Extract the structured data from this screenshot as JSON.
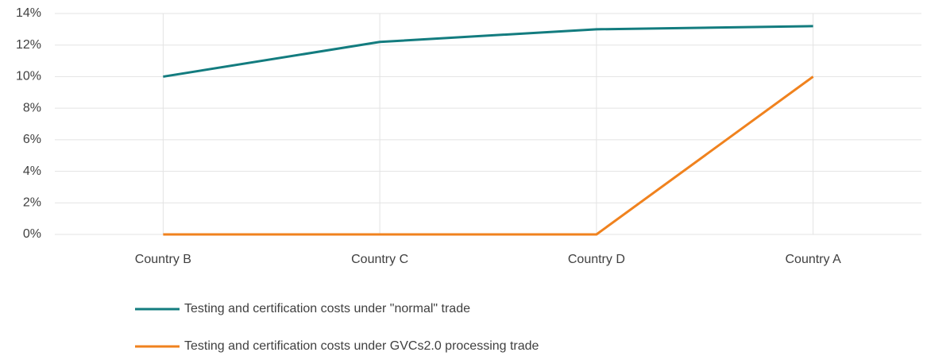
{
  "chart_data": {
    "type": "line",
    "categories": [
      "Country B",
      "Country C",
      "Country D",
      "Country A"
    ],
    "series": [
      {
        "name": "Testing and certification costs under \"normal\" trade",
        "color": "#137c7f",
        "values": [
          10,
          12.2,
          13,
          13.2
        ]
      },
      {
        "name": "Testing and certification costs under GVCs2.0 processing trade",
        "color": "#f0821e",
        "values": [
          0,
          0,
          0,
          10
        ]
      }
    ],
    "ylim": [
      0,
      14
    ],
    "yticks": [
      {
        "value": 0,
        "label": "0%"
      },
      {
        "value": 2,
        "label": "2%"
      },
      {
        "value": 4,
        "label": "4%"
      },
      {
        "value": 6,
        "label": "6%"
      },
      {
        "value": 8,
        "label": "8%"
      },
      {
        "value": 10,
        "label": "10%"
      },
      {
        "value": 12,
        "label": "12%"
      },
      {
        "value": 14,
        "label": "14%"
      }
    ],
    "grid": true,
    "legend": "bottom"
  }
}
